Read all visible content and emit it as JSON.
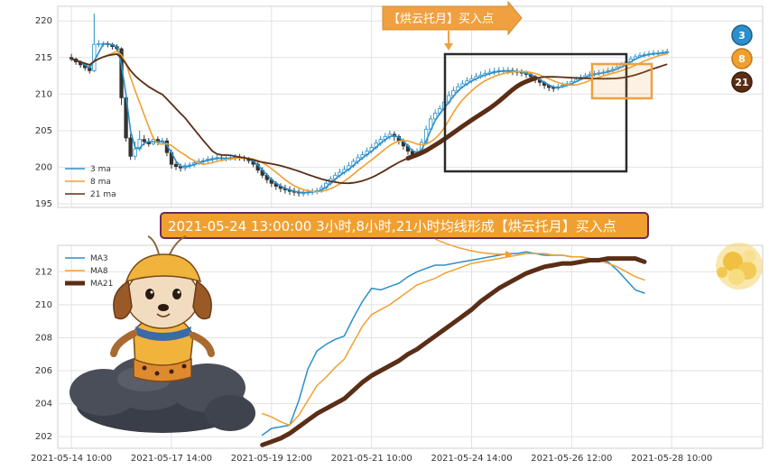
{
  "annotations": {
    "top_callout": "【烘云托月】买入点",
    "banner": "2021-05-24 13:00:00 3小时,8小时,21小时均线形成【烘云托月】买入点",
    "badges": [
      "3",
      "8",
      "21"
    ]
  },
  "colors": {
    "ma3": "#2a8fca",
    "ma8": "#f0a030",
    "ma21": "#5a2e16",
    "up": "#2a8fca",
    "down": "#333333",
    "callout_bg": "#f0a040",
    "banner_bg": "#f0a030",
    "banner_border": "#6b2a5a",
    "box_dark": "#2b2b2b",
    "box_orange": "#f0a040"
  },
  "chart_data": [
    {
      "type": "candlestick",
      "title": "",
      "ylim": [
        194.5,
        222
      ],
      "yticks": [
        195,
        200,
        205,
        210,
        215,
        220
      ],
      "legend": {
        "position": "bottom-left",
        "entries": [
          "3 ma",
          "8 ma",
          "21 ma"
        ]
      },
      "grid": true,
      "index_range": [
        -3,
        152
      ],
      "x_index_ticks": [
        0,
        22,
        44,
        66,
        88,
        110,
        132
      ],
      "ohlc": [
        [
          215,
          214.8,
          215.5,
          214.5
        ],
        [
          214.8,
          214.4,
          215,
          214
        ],
        [
          214.4,
          214,
          214.6,
          213.6
        ],
        [
          214,
          213.6,
          214.3,
          213.2
        ],
        [
          213.6,
          213.2,
          214,
          212.8
        ],
        [
          213.2,
          216.8,
          221,
          213
        ],
        [
          216.8,
          216.9,
          217.4,
          216.4
        ],
        [
          216.9,
          216.9,
          217.2,
          216.5
        ],
        [
          216.9,
          216.8,
          217.2,
          216.4
        ],
        [
          216.8,
          216.5,
          217,
          216.1
        ],
        [
          216.5,
          216.2,
          216.8,
          215.8
        ],
        [
          216.2,
          209.5,
          216.4,
          208.5
        ],
        [
          209.5,
          204,
          210,
          203.5
        ],
        [
          204,
          201.5,
          204.6,
          201
        ],
        [
          201.5,
          202.5,
          203.5,
          201
        ],
        [
          202.5,
          203.8,
          205,
          202.2
        ],
        [
          203.8,
          203.5,
          204.4,
          203
        ],
        [
          203.5,
          203.2,
          204,
          202.8
        ],
        [
          203.2,
          203.8,
          204.2,
          203
        ],
        [
          203.8,
          203.4,
          204.2,
          203
        ],
        [
          203.4,
          203.6,
          204,
          203.1
        ],
        [
          203.6,
          202,
          204,
          201.5
        ],
        [
          202,
          200.4,
          202.4,
          199.8
        ],
        [
          200.4,
          200.1,
          200.8,
          199.6
        ],
        [
          200.1,
          199.9,
          200.5,
          199.4
        ],
        [
          199.9,
          200.2,
          200.6,
          199.5
        ],
        [
          200.2,
          200.3,
          200.7,
          199.8
        ],
        [
          200.3,
          200.6,
          201,
          200
        ],
        [
          200.6,
          200.8,
          201.2,
          200.3
        ],
        [
          200.8,
          200.9,
          201.3,
          200.4
        ],
        [
          200.9,
          201.1,
          201.5,
          200.6
        ],
        [
          201.1,
          201.2,
          201.6,
          200.7
        ],
        [
          201.2,
          201.3,
          201.7,
          200.9
        ],
        [
          201.3,
          201.2,
          201.6,
          200.8
        ],
        [
          201.2,
          201.2,
          201.6,
          200.8
        ],
        [
          201.2,
          201.3,
          201.7,
          200.9
        ],
        [
          201.3,
          201.4,
          201.8,
          200.9
        ],
        [
          201.4,
          201.3,
          201.8,
          200.9
        ],
        [
          201.3,
          201.2,
          201.6,
          200.8
        ],
        [
          201.2,
          200.9,
          201.4,
          200.5
        ],
        [
          200.9,
          200.4,
          201.1,
          200
        ],
        [
          200.4,
          199.6,
          200.7,
          199.2
        ],
        [
          199.6,
          198.9,
          200,
          198.5
        ],
        [
          198.9,
          198.3,
          199.2,
          197.8
        ],
        [
          198.3,
          197.8,
          198.6,
          197.3
        ],
        [
          197.8,
          197.4,
          198.1,
          196.9
        ],
        [
          197.4,
          197.1,
          197.8,
          196.6
        ],
        [
          197.1,
          196.9,
          197.6,
          196.4
        ],
        [
          196.9,
          196.7,
          197.4,
          196.2
        ],
        [
          196.7,
          196.6,
          197.2,
          196.1
        ],
        [
          196.6,
          196.5,
          197,
          196
        ],
        [
          196.5,
          196.5,
          196.9,
          196
        ],
        [
          196.5,
          196.6,
          197,
          196.1
        ],
        [
          196.6,
          196.7,
          197.1,
          196.2
        ],
        [
          196.7,
          196.8,
          197.2,
          196.3
        ],
        [
          196.8,
          197.2,
          197.6,
          196.5
        ],
        [
          197.2,
          197.8,
          198.2,
          196.9
        ],
        [
          197.8,
          198.4,
          198.8,
          197.5
        ],
        [
          198.4,
          198.9,
          199.3,
          198
        ],
        [
          198.9,
          199.3,
          199.8,
          198.6
        ],
        [
          199.3,
          199.7,
          200.2,
          199
        ],
        [
          199.7,
          200.2,
          200.7,
          199.4
        ],
        [
          200.2,
          200.8,
          201.2,
          199.9
        ],
        [
          200.8,
          201.3,
          201.8,
          200.4
        ],
        [
          201.3,
          201.7,
          202.2,
          201
        ],
        [
          201.7,
          202.2,
          202.7,
          201.4
        ],
        [
          202.2,
          202.7,
          203.2,
          201.9
        ],
        [
          202.7,
          203.3,
          203.8,
          202.4
        ],
        [
          203.3,
          203.8,
          204.3,
          202.9
        ],
        [
          203.8,
          204.2,
          204.7,
          203.4
        ],
        [
          204.2,
          204.5,
          205,
          203.8
        ],
        [
          204.5,
          204.2,
          204.9,
          203.6
        ],
        [
          204.2,
          203.6,
          204.5,
          203.1
        ],
        [
          203.6,
          202.9,
          203.9,
          202.4
        ],
        [
          202.9,
          202.2,
          203.2,
          201.7
        ],
        [
          202.2,
          201.7,
          202.5,
          201.2
        ],
        [
          201.7,
          202.1,
          202.6,
          201.4
        ],
        [
          202.1,
          203.4,
          203.9,
          201.9
        ],
        [
          203.4,
          205.2,
          205.7,
          203.2
        ],
        [
          205.2,
          206.6,
          207.1,
          205
        ],
        [
          206.6,
          207.4,
          207.9,
          206.3
        ],
        [
          207.4,
          208,
          208.5,
          207.1
        ],
        [
          208,
          208.9,
          209.5,
          207.7
        ],
        [
          208.9,
          209.8,
          210.4,
          208.6
        ],
        [
          209.8,
          210.5,
          211,
          209.5
        ],
        [
          210.5,
          211,
          211.5,
          210.2
        ],
        [
          211,
          211.4,
          211.9,
          210.8
        ],
        [
          211.4,
          211.8,
          212.3,
          211.1
        ],
        [
          211.8,
          212.1,
          212.6,
          211.5
        ],
        [
          212.1,
          212.4,
          212.9,
          211.8
        ],
        [
          212.4,
          212.6,
          213.1,
          212.1
        ],
        [
          212.6,
          212.8,
          213.3,
          212.3
        ],
        [
          212.8,
          213,
          213.5,
          212.5
        ],
        [
          213,
          213.1,
          213.6,
          212.6
        ],
        [
          213.1,
          213.2,
          213.7,
          212.7
        ],
        [
          213.2,
          213.2,
          213.7,
          212.8
        ],
        [
          213.2,
          213.2,
          213.7,
          212.7
        ],
        [
          213.2,
          213.1,
          213.6,
          212.6
        ],
        [
          213.1,
          213,
          213.5,
          212.5
        ],
        [
          213,
          212.9,
          213.4,
          212.4
        ],
        [
          212.9,
          212.7,
          213.2,
          212.2
        ],
        [
          212.7,
          212.4,
          212.9,
          211.9
        ],
        [
          212.4,
          212,
          212.6,
          211.5
        ],
        [
          212,
          211.6,
          212.2,
          211.1
        ],
        [
          211.6,
          211.2,
          211.8,
          210.7
        ],
        [
          211.2,
          210.9,
          211.4,
          210.4
        ],
        [
          210.9,
          210.8,
          211.2,
          210.3
        ],
        [
          210.8,
          211,
          211.4,
          210.5
        ],
        [
          211,
          211.2,
          211.6,
          210.8
        ],
        [
          211.2,
          211.4,
          211.8,
          211
        ],
        [
          211.4,
          211.7,
          212.1,
          211.3
        ],
        [
          211.7,
          212,
          212.4,
          211.6
        ],
        [
          212,
          212.3,
          212.7,
          211.9
        ],
        [
          212.3,
          212.5,
          212.9,
          212.1
        ],
        [
          212.5,
          212.7,
          213.1,
          212.3
        ],
        [
          212.7,
          212.8,
          213.2,
          212.4
        ],
        [
          212.8,
          212.9,
          213.3,
          212.5
        ],
        [
          212.9,
          213,
          213.4,
          212.6
        ],
        [
          213,
          213.2,
          213.6,
          212.8
        ],
        [
          213.2,
          213.4,
          213.8,
          213
        ],
        [
          213.4,
          213.7,
          214.1,
          213.3
        ],
        [
          213.7,
          214,
          214.4,
          213.6
        ],
        [
          214,
          214.4,
          214.8,
          214
        ],
        [
          214.4,
          214.8,
          215.2,
          214.4
        ],
        [
          214.8,
          215.1,
          215.5,
          214.7
        ],
        [
          215.1,
          215.3,
          215.7,
          214.9
        ],
        [
          215.3,
          215.4,
          215.8,
          215
        ],
        [
          215.4,
          215.5,
          215.9,
          215.1
        ],
        [
          215.5,
          215.6,
          216,
          215.2
        ],
        [
          215.6,
          215.6,
          216,
          215.2
        ],
        [
          215.6,
          215.7,
          216.1,
          215.3
        ],
        [
          215.7,
          215.8,
          216.2,
          215.4
        ]
      ]
    },
    {
      "type": "line",
      "title": "",
      "x_tick_labels": [
        "2021-05-14 10:00",
        "2021-05-17 14:00",
        "2021-05-19 12:00",
        "2021-05-21 10:00",
        "2021-05-24 14:00",
        "2021-05-26 12:00",
        "2021-05-28 10:00"
      ],
      "x_tick_positions": [
        0,
        22,
        44,
        66,
        88,
        110,
        132
      ],
      "index_range": [
        -3,
        152
      ],
      "ylim": [
        201.3,
        213.6
      ],
      "yticks": [
        202,
        204,
        206,
        208,
        210,
        212
      ],
      "legend": {
        "position": "top-left",
        "entries": [
          "MA3",
          "MA8",
          "MA21"
        ]
      },
      "grid": true,
      "series": [
        {
          "name": "MA3",
          "x": [
            42,
            44,
            46,
            48,
            50,
            52,
            54,
            56,
            58,
            60,
            62,
            64,
            66,
            68,
            70,
            72,
            74,
            76,
            78,
            80,
            82,
            84,
            86,
            88,
            90,
            92,
            94,
            96,
            98,
            100,
            102,
            104,
            106,
            108,
            110,
            112,
            114,
            116,
            118,
            120,
            122,
            124,
            126
          ],
          "y": [
            202.1,
            202.5,
            202.6,
            202.7,
            204.2,
            206.1,
            207.2,
            207.6,
            207.9,
            208.1,
            209.2,
            210.2,
            211.0,
            210.9,
            211.1,
            211.3,
            211.7,
            212.0,
            212.2,
            212.4,
            212.4,
            212.5,
            212.6,
            212.7,
            212.8,
            212.9,
            213.0,
            213.1,
            213.1,
            213.2,
            213.1,
            213.0,
            213.0,
            213.0,
            212.9,
            212.9,
            212.8,
            212.7,
            212.6,
            212.1,
            211.5,
            210.9,
            210.7
          ]
        },
        {
          "name": "MA8",
          "x": [
            42,
            44,
            46,
            48,
            50,
            52,
            54,
            56,
            58,
            60,
            62,
            64,
            66,
            68,
            70,
            72,
            74,
            76,
            78,
            80,
            82,
            84,
            86,
            88,
            90,
            92,
            94,
            96,
            98,
            100,
            102,
            104,
            106,
            108,
            110,
            112,
            114,
            116,
            118,
            120,
            122,
            124,
            126
          ],
          "y": [
            203.4,
            203.2,
            202.9,
            202.7,
            203.3,
            204.2,
            205.1,
            205.6,
            206.2,
            206.7,
            207.7,
            208.7,
            209.4,
            209.7,
            210.0,
            210.4,
            210.8,
            211.2,
            211.4,
            211.6,
            211.9,
            212.1,
            212.3,
            212.5,
            212.6,
            212.7,
            212.8,
            212.9,
            213.0,
            213.1,
            213.1,
            213.1,
            213.0,
            213.0,
            212.9,
            212.9,
            212.8,
            212.7,
            212.5,
            212.3,
            212.0,
            211.7,
            211.5
          ]
        },
        {
          "name": "MA21",
          "x": [
            42,
            44,
            46,
            48,
            50,
            52,
            54,
            56,
            58,
            60,
            62,
            64,
            66,
            68,
            70,
            72,
            74,
            76,
            78,
            80,
            82,
            84,
            86,
            88,
            90,
            92,
            94,
            96,
            98,
            100,
            102,
            104,
            106,
            108,
            110,
            112,
            114,
            116,
            118,
            120,
            122,
            124,
            126
          ],
          "y": [
            201.5,
            201.7,
            201.9,
            202.2,
            202.6,
            203.0,
            203.4,
            203.7,
            204.0,
            204.3,
            204.8,
            205.3,
            205.7,
            206.0,
            206.3,
            206.6,
            207.0,
            207.3,
            207.7,
            208.1,
            208.5,
            208.9,
            209.3,
            209.7,
            210.2,
            210.6,
            211.0,
            211.3,
            211.6,
            211.9,
            212.1,
            212.3,
            212.4,
            212.5,
            212.5,
            212.6,
            212.7,
            212.7,
            212.8,
            212.8,
            212.8,
            212.8,
            212.6
          ]
        }
      ]
    }
  ]
}
